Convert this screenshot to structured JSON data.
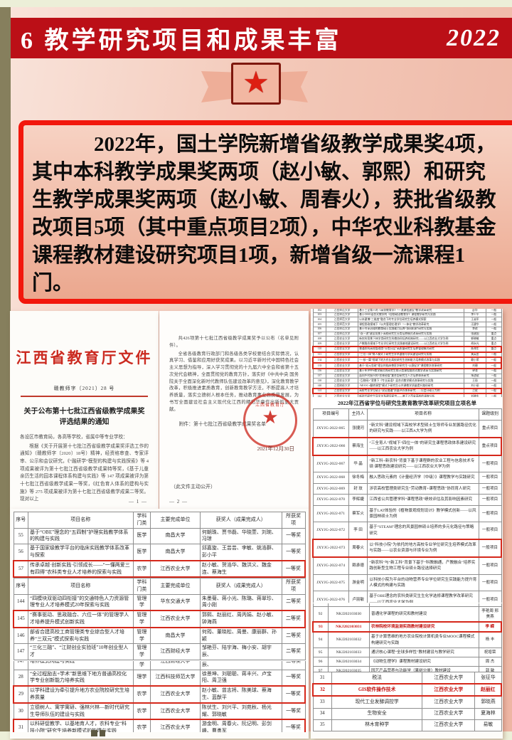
{
  "slide": {
    "title": "6 教学研究项目和成果丰富",
    "year": "2022"
  },
  "intro": {
    "text": "2022年，国土学院新增省级教学成果奖4项，其中本科教学成果奖两项（赵小敏、郭熙）和研究生教学成果奖两项（赵小敏、周春火），获批省级教改项目5项（其中重点项目2项），中华农业科教基金课程教材建设研究项目1项，新增省级一流课程1门。"
  },
  "colors": {
    "accent_red": "#bb0f17",
    "highlight_red": "#d5281b",
    "olive_strip": "#867f5d",
    "slide_pink": "#f3c8b8"
  },
  "doc1": {
    "title": "江西省教育厅文件",
    "doc_no": "赣教师字〔2021〕28 号",
    "heading1": "关于公布第十七批江西省级教学成果奖",
    "heading2": "评选结果的通知",
    "salutation": "各设区市教育局，各高等学校，省属中等专业学校：",
    "body": "根据《关于开展第十七批江西省级教学成果奖评选工作的通知》（赣教师字〔2020〕18号）精神，经资格审查、专家评审、公示和会议研究，《“融研学”模型的构建与实践探索》等 4 项成果被评为第十七批江西省级教学成果特等奖，《基于儿童亲历生活的园本课程体系构建与实践》等 147 项成果被评为第十七批江西省级教学成果一等奖，《红色育人体系的建构与实施》等 275 项成果被评为第十七批江西省级教学成果二等奖。现对以上",
    "page_no": "— 1 —"
  },
  "doc2": {
    "para1": "共426项第十七批江西省级教学成果奖予以公布（名单见附件）。",
    "para2": "全省各级教育行政部门和各级各类学校要结合实际情况，认真学习、借鉴和应用好获奖成果。以习近平新时代中国特色社会主义思想为指导，深入学习贯彻党的十九届六中全会和省第十五次党代会精神，全面贯彻党的教育方针，落实好《中共中央 国务院关于全面深化新时代教师队伍建设改革的意见》，深化教育教学改革，积极推进素质教育，创新教育教学方法，不断提高人才培养质量，落实立德树人根本任务，推动教育事业高质量发展，为书写全面建设社会主义现代化江西的精彩华章作出新的更大贡献。",
    "attachment": "附件：第十七批江西省级教学成果奖名单",
    "stamp_text": "江西省教育厅",
    "date": "2021年12月30日",
    "footer_note": "（此文件主动公开）",
    "page_no": "— 2 —"
  },
  "awards_a": {
    "header": [
      "序号",
      "项目名称",
      "学科门类",
      "主要完成单位",
      "获奖人（成果完成人）",
      "所获奖项"
    ],
    "rows": [
      {
        "cells": [
          "55",
          "基于“OBE”理念的“五四制”护理实践教学体系的构建与实践",
          "医学",
          "南昌大学",
          "何朝珠、贾书磊、华晓萱、刘琬、冯琼",
          "一等奖"
        ]
      },
      {
        "cells": [
          "56",
          "基于国家级教学平台的临床实践教学体系改革与探索",
          "医学",
          "南昌大学",
          "邱嘉旋、王芸芸、李敏、姚浩群、彭小平",
          "一等奖"
        ]
      },
      {
        "cells": [
          "57",
          "传承卓越·创新实践·引领成长——“一懂两爱三有四得”农科类专业人才培养的探索与实践",
          "农学",
          "江西农业大学",
          "赵小敏、贺浩华、魏洪义、魏金连、蔡海生",
          "一等奖"
        ],
        "hl": true
      },
      {
        "cells": [
          "58",
          "康复治疗学专业医康养融合应用型人才培养模式",
          "医学",
          "赣南医学院",
          "温优良、王汉源、钟华、任彬玲、",
          "一等奖"
        ]
      }
    ]
  },
  "awards_b": {
    "header": [
      "序号",
      "项目名称",
      "学科门类",
      "主要完成单位",
      "获奖人（成果完成人）",
      "所获奖项"
    ],
    "rows": [
      {
        "cells": [
          "144",
          "“四模块双驱动四衔接”的交通特色人力资源管理专业人才培养模式20年探索与实践",
          "管理学",
          "华东交通大学",
          "朱墨菊、蒋小光、陈璐、蒋翠珍、周小刚",
          "二等奖"
        ]
      },
      {
        "cells": [
          "145",
          "“赛事驱动、思政融合、六位一体”的管理学人才培养提升模式创新实践",
          "管理学",
          "江西农业大学",
          "郭熙、赵丽红、周丙娟、赵小敏、钟海燕",
          "二等奖"
        ],
        "hl": true
      },
      {
        "cells": [
          "146",
          "部省合建高校工商管理类专业综合型人才培养“三双元”模式探索与实践",
          "管理学",
          "南昌大学",
          "何筠、董晓松、周曼、康丽群、孙颖",
          "二等奖"
        ]
      },
      {
        "cells": [
          "147",
          "“三化三融”、“江财创业实验班”10年创业型人才",
          "管理学",
          "江西财经大学",
          "邹艳芬、陆宇海、梅小安、胡宇辰、",
          "二等奖"
        ]
      }
    ]
  },
  "awards_c": {
    "rows": [
      {
        "cells": [
          "147",
          "培养模式构建与实践",
          "管理学",
          "江西财经大学",
          "邹艳芬、陆宇海、梅小安、胡宇辰、",
          "二等奖"
        ]
      },
      {
        "cells": [
          "28",
          "“全过程励志+学术”新思维下地方普通高校化学专业创新能力培养实践",
          "理学",
          "江西科技师范大学",
          "徐景坤、刘聪聪、蒋丰兴、卢宝阳、周卫强",
          "一等奖"
        ]
      },
      {
        "cells": [
          "29",
          "以学科建设为牵引提升地方农业院校研究生培养质量",
          "农学",
          "江西农业大学",
          "赵小敏、曾志将、陈美球、蔡海生、蓝猷平",
          "一等奖"
        ],
        "hl": true
      },
      {
        "cells": [
          "30",
          "立德树人、寓学寓研、强林兴林—新时代研究生导师队伍的建设与实践",
          "农学",
          "江西农业大学",
          "陈伏生、刘兴平、刘苑秋、杨光耀、郭晓敏",
          "一等奖"
        ]
      },
      {
        "cells": [
          "31",
          "以科研促教学、以基地育人才，农科专业“科技小院”研究生培养新模式的构建与实践",
          "农学",
          "江西农业大学",
          "游金明、周春火、阮记明、彭剑峰、曹勇军",
          "一等奖"
        ],
        "hl": true
      },
      {
        "cells": [
          "32",
          "基于“双轮驱动·多维协同·深度实践”的药学专项双创人才培养与实践",
          "医学",
          "江西科技师范大学",
          "朱五福、邹鹏武、徐榴、陈继华、潘青山",
          "一等奖"
        ]
      }
    ]
  },
  "right_top": {
    "rows": [
      {
        "cells": [
          "102",
          "江西师范大学",
          "基于三全育人的《高等教育学》“一流课程建设”教学改革研究",
          "彭华",
          "一般"
        ]
      },
      {
        "cells": [
          "103",
          "江西师范大学",
          "基于OMO混合式教学的《思想政治教育学》课程教学研究与实践",
          "李少平",
          "一般"
        ]
      },
      {
        "cells": [
          "104",
          "江西师范大学",
          "以本建博“三维度”融合下的专业学位研究生培养模式探索",
          "王淑军",
          "一般"
        ]
      },
      {
        "cells": [
          "105",
          "江西师范大学",
          "课程思政视域下《公共管理伦理学》“一体化”教学改革研究",
          "汪建华",
          "一般"
        ]
      },
      {
        "cells": [
          "106",
          "江西师范大学",
          "基于共享治理的教育硕士实践能力培养“协同机制”研究与实践",
          "李琪",
          "一般"
        ]
      },
      {
        "cells": [
          "107",
          "江西师范大学",
          "“双一流”建设背景下高校研究生分类培养模式改革研究与实践",
          "张建国",
          "重点"
        ]
      },
      {
        "cells": [
          "108",
          "江西农业大学",
          "新农科背景下林学类研究生科教协同培养机制研究——以江西农业大学为例",
          "郭晓敏",
          "重点"
        ]
      },
      {
        "cells": [
          "109",
          "江西农业大学",
          "产教融合视域下专业学位研究生实践基地建设研究——以江西农业大学为例",
          "胡永光",
          "重点"
        ]
      },
      {
        "cells": [
          "110",
          "江西农业大学",
          "普通本科高校管理类“分类分层”高质量研究生培养管理模式研究",
          "蔡海生",
          "重点"
        ],
        "hl": true
      },
      {
        "cells": [
          "111",
          "江西农业大学",
          "“三位一体”育人模式下研究生学术道德与学风建设研究与实践",
          "黄英金",
          "一般"
        ]
      },
      {
        "cells": [
          "134",
          "江西农业大学",
          "“一核一翼”视域下地方农业高校研究生创新能力培养模式改革与实践",
          "赖小荣",
          "一般"
        ],
        "hl": true
      },
      {
        "cells": [
          "135",
          "江西农业大学",
          "基于“双元思政”理念的临床兽医学研究生“以赛促学”课程教学改革研究",
          "刘珊",
          "一般"
        ],
        "hl": true
      },
      {
        "cells": [
          "136",
          "江西农业大学",
          "基于BOPPPS教学模式的研究生统计类课程融合式教学改革与实践研究",
          "钟涛",
          "一般"
        ]
      },
      {
        "cells": [
          "137",
          "江西农业大学",
          "面向乡村振兴的“农林经管”复合型研究生人才培养体系研究",
          "朱述斌",
          "一般"
        ]
      },
      {
        "cells": [
          "138",
          "江西农业大学",
          "“互联网+”背景下《专业英语》混合式教学模式改革研究与实践",
          "王丽",
          "一般"
        ]
      },
      {
        "cells": [
          "140",
          "江西财经大学",
          "“MOOC+翻转课堂”模式下研究生公共课教学质量提升路径研究",
          "刘小丽",
          "一般"
        ]
      },
      {
        "cells": [
          "141",
          "江西农业大学",
          "高校专业学位硕士“双证融通”质量评价体系研究——以会计硕士为例",
          "江斌",
          "一般"
        ],
        "hl": true
      },
      {
        "cells": [
          "142",
          "江西农业大学",
          "新时代研究生导学关系建设研究——基于江西省高校的调查分析",
          "刘晓东",
          "一般"
        ]
      },
      {
        "cells": [
          "143",
          "江西师范大学",
          "“一流学科建设”背景下研究生学术创新能力培养机制研究与实践",
          "郭鹏",
          "重点"
        ]
      }
    ]
  },
  "right_mid": {
    "caption": "2022年江西省学位与研究生教育教学改革研究项目立项名单",
    "header": [
      "项目编号",
      "主持人",
      "项目名称",
      "课题级别"
    ],
    "rows": [
      {
        "cells": [
          "JXYJG-2022-065",
          "张捷河",
          "“新文科”建设视域下高校学术型硕士生导师专业发展路径优化的研究与实践——以江西A大学为例",
          "重点项目"
        ]
      },
      {
        "cells": [
          "JXYJG-2022-066",
          "蔡海生",
          "“三全育人”视域下“四位一体”的研究生课程思政体系建设研究——以江西农业大学为例",
          "重点项目"
        ],
        "hl": true
      },
      {
        "cells": [
          "JXYJG-2022-067",
          "华 晶",
          "“新工科+新农科”背景下基于课程群的农业工程与信息技术专硕 课程思政建设研究——以江西农业大学为例",
          "一般项目"
        ]
      },
      {
        "cells": [
          "JXYJG-2022-068",
          "徐冬梅",
          "融入思政元素的《计量经济学（中级）》课程教学与实践研究",
          "一般项目"
        ]
      },
      {
        "cells": [
          "JXYJG-2022-069",
          "封 玫",
          "涉农高校管理类研究生“劳动教育+课程思政”协同育人研究",
          "一般项目"
        ]
      },
      {
        "cells": [
          "JXYJG-2022-070",
          "李辉婕",
          "江西省公共管理学科“课程思政”绩效评估及其影响因素研究",
          "一般项目"
        ]
      },
      {
        "cells": [
          "JXYJG-2022-071",
          "蔡军火",
          "基于LAT体验的《植物景观规划设计》教学模式创新——以风景园林硕士为例",
          "一般项目"
        ]
      },
      {
        "cells": [
          "JXYJG-2022-072",
          "李 田",
          "基于“STEAM”理念的风景园林硕士培养的多元化路径与策略研究",
          "一般项目"
        ]
      },
      {
        "cells": [
          "JXYJG-2022-073",
          "周春火",
          "以“科技小院”为依托的地方高校专业学位研究生培养模式改革与实践——以农业资源与环境专业为例",
          "一般项目"
        ],
        "hl": true
      },
      {
        "cells": [
          "JXYJG-2022-074",
          "赖承德",
          "“新农科”与“新工科”背景下基于“科教融通，产教融合”培养实践创新型生物工程专业硕士路径选择研究",
          "一般项目"
        ]
      },
      {
        "cells": [
          "JXYJG-2022-075",
          "游金明",
          "以科技小院为平台的动物营养专业学位研究生实践能力提升育人模式的构建与实践",
          "一般项目"
        ]
      },
      {
        "cells": [
          "JXYJG-2022-076",
          "卢丽敏",
          "基于OBE理念的农科类研究生生化学选修课程教学改革研究——以江西农业大学为例",
          "一般项目"
        ]
      }
    ]
  },
  "right_fund": {
    "rows": [
      {
        "cells": [
          "91",
          "NKJ202103029",
          "）教材建设研究",
          "朱 强"
        ]
      },
      {
        "cells": [
          "92",
          "NKJ202103030",
          "普通化学课程的研究和教材建设",
          "李艳周 邢美燕"
        ]
      },
      {
        "cells": [
          "93",
          "NKJ202103031",
          "农林院校环境监测实践教材建设研究",
          "李 嵘"
        ],
        "hl": true,
        "red": true
      },
      {
        "cells": [
          "94",
          "NKJ202103032",
          "基于计算思维的地方农业院校计算机类专业MOOC课程模式构建研究与实践",
          "杨 丰"
        ]
      },
      {
        "cells": [
          "95",
          "NKJ202103033",
          "通识核心课程“全球多样性”教材建设与教学研究",
          "祝增荣"
        ]
      },
      {
        "cells": [
          "96",
          "NKJ202103034",
          "《动物生理学》课程教材建设研究",
          "周 杰"
        ]
      },
      {
        "cells": [
          "97",
          "NKJ202103035",
          "园艺产品营养与功能学（果树分册）教材建设",
          "郭 敏"
        ]
      }
    ]
  },
  "right_course": {
    "rows": [
      {
        "cells": [
          "31",
          "税法",
          "江西农业大学",
          "张征华"
        ]
      },
      {
        "cells": [
          "32",
          "GIS软件操作技术",
          "江西农业大学",
          "赵丽红"
        ],
        "hl": true,
        "red": true
      },
      {
        "cells": [
          "33",
          "现代工业发酵调控学",
          "江西农业大学",
          "郭晓燕"
        ]
      },
      {
        "cells": [
          "34",
          "生物安全",
          "江西农业大学",
          "夏海林"
        ]
      },
      {
        "cells": [
          "35",
          "林木育种学",
          "江西农业大学",
          "易敏"
        ]
      },
      {
        "cells": [
          "36",
          "化工原理（上）",
          "江西农业大学",
          "余莉莉"
        ]
      }
    ]
  }
}
